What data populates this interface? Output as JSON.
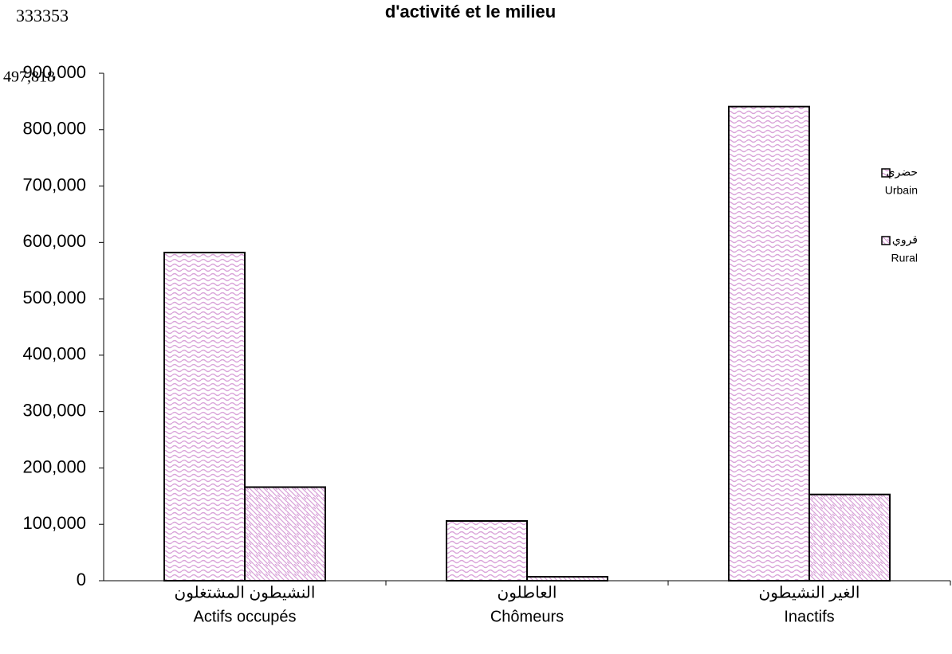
{
  "chart_data": {
    "type": "bar",
    "title": "d'activité et le milieu",
    "annotations": [
      "333353",
      "497,818"
    ],
    "categories": [
      "Actifs occupés",
      "Chômeurs",
      "Inactifs"
    ],
    "categories_ar": [
      "النشيطون المشتغلون",
      "العاطلون",
      "الغير النشيطون"
    ],
    "series": [
      {
        "name": "حضري",
        "subname": "Urbain",
        "color": "#d9a3d9",
        "pattern": "wave",
        "values": [
          582000,
          106000,
          841000
        ]
      },
      {
        "name": "قروي",
        "subname": "Rural",
        "color": "#d9a3d9",
        "pattern": "diagonal",
        "values": [
          166000,
          7000,
          153000
        ]
      }
    ],
    "ylim": [
      0,
      900000
    ],
    "yticks": [
      0,
      {
        "value": 100000,
        "label": "100,000"
      },
      {
        "value": 200000,
        "label": "200,000"
      },
      {
        "value": 300000,
        "label": "300,000"
      },
      {
        "value": 400000,
        "label": "400,000"
      },
      {
        "value": 500000,
        "label": "500,000"
      },
      {
        "value": 600000,
        "label": "600,000"
      },
      {
        "value": 700000,
        "label": "700,000"
      },
      {
        "value": 800000,
        "label": "800,000"
      },
      {
        "value": 900000,
        "label": "900,000"
      }
    ],
    "legend": "right"
  }
}
